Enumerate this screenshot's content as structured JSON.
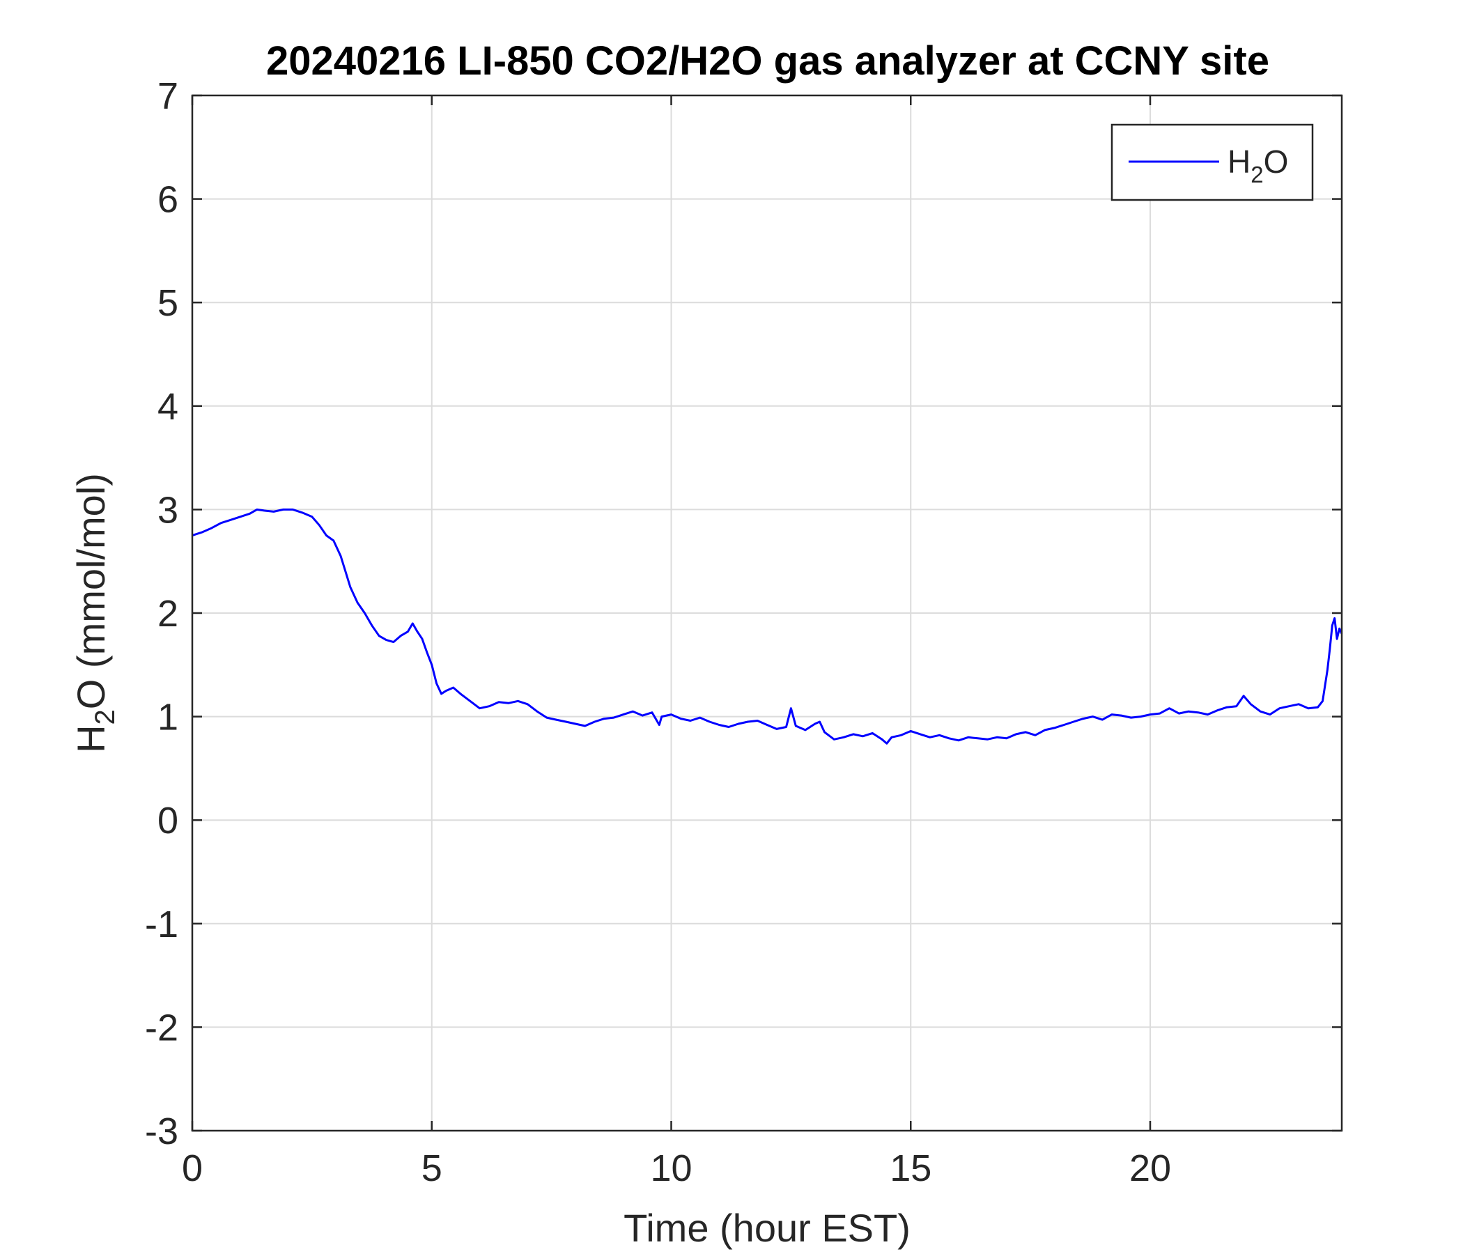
{
  "chart_data": {
    "type": "line",
    "title": "20240216 LI-850 CO2/H2O gas analyzer at CCNY site",
    "xlabel": "Time (hour EST)",
    "ylabel": {
      "base": "H",
      "sub": "2",
      "rest": "O (mmol/mol)"
    },
    "xlim": [
      0,
      24
    ],
    "ylim": [
      -3,
      7
    ],
    "xticks": [
      0,
      5,
      10,
      15,
      20
    ],
    "xtick_labels": [
      "0",
      "5",
      "10",
      "15",
      "20"
    ],
    "yticks": [
      -3,
      -2,
      -1,
      0,
      1,
      2,
      3,
      4,
      5,
      6,
      7
    ],
    "ytick_labels": [
      "-3",
      "-2",
      "-1",
      "0",
      "1",
      "2",
      "3",
      "4",
      "5",
      "6",
      "7"
    ],
    "grid": true,
    "legend": {
      "position": "top-right",
      "entries": [
        {
          "base": "H",
          "sub": "2",
          "rest": "O",
          "color": "#0000ff"
        }
      ]
    },
    "series": [
      {
        "name": "H2O",
        "color": "#0000ff",
        "x": [
          0,
          0.2,
          0.4,
          0.6,
          0.8,
          1.0,
          1.2,
          1.35,
          1.5,
          1.7,
          1.9,
          2.1,
          2.3,
          2.5,
          2.65,
          2.8,
          2.95,
          3.1,
          3.2,
          3.3,
          3.45,
          3.6,
          3.75,
          3.9,
          4.05,
          4.2,
          4.35,
          4.5,
          4.6,
          4.7,
          4.8,
          4.9,
          5.0,
          5.1,
          5.2,
          5.3,
          5.45,
          5.6,
          5.8,
          6.0,
          6.2,
          6.4,
          6.6,
          6.8,
          7.0,
          7.2,
          7.4,
          7.6,
          7.8,
          8.0,
          8.2,
          8.4,
          8.6,
          8.8,
          9.0,
          9.2,
          9.4,
          9.6,
          9.75,
          9.8,
          10.0,
          10.2,
          10.4,
          10.6,
          10.8,
          11.0,
          11.2,
          11.4,
          11.6,
          11.8,
          12.0,
          12.2,
          12.4,
          12.5,
          12.6,
          12.8,
          13.0,
          13.1,
          13.2,
          13.4,
          13.6,
          13.8,
          14.0,
          14.2,
          14.4,
          14.5,
          14.6,
          14.8,
          15.0,
          15.2,
          15.4,
          15.6,
          15.8,
          16.0,
          16.2,
          16.4,
          16.6,
          16.8,
          17.0,
          17.2,
          17.4,
          17.6,
          17.8,
          18.0,
          18.2,
          18.4,
          18.6,
          18.8,
          19.0,
          19.2,
          19.4,
          19.6,
          19.8,
          20.0,
          20.2,
          20.4,
          20.6,
          20.8,
          21.0,
          21.2,
          21.4,
          21.6,
          21.8,
          21.95,
          22.1,
          22.3,
          22.5,
          22.7,
          22.9,
          23.1,
          23.3,
          23.5,
          23.6,
          23.7,
          23.75,
          23.8,
          23.85,
          23.9,
          23.95,
          24.0
        ],
        "y": [
          2.75,
          2.78,
          2.82,
          2.87,
          2.9,
          2.93,
          2.96,
          3.0,
          2.99,
          2.98,
          3.0,
          3.0,
          2.97,
          2.93,
          2.85,
          2.75,
          2.7,
          2.55,
          2.4,
          2.25,
          2.1,
          2.0,
          1.88,
          1.78,
          1.74,
          1.72,
          1.78,
          1.82,
          1.9,
          1.82,
          1.75,
          1.62,
          1.5,
          1.32,
          1.22,
          1.25,
          1.28,
          1.22,
          1.15,
          1.08,
          1.1,
          1.14,
          1.13,
          1.15,
          1.12,
          1.05,
          0.99,
          0.97,
          0.95,
          0.93,
          0.91,
          0.95,
          0.98,
          0.99,
          1.02,
          1.05,
          1.01,
          1.04,
          0.92,
          1.0,
          1.02,
          0.98,
          0.96,
          0.99,
          0.95,
          0.92,
          0.9,
          0.93,
          0.95,
          0.96,
          0.92,
          0.88,
          0.9,
          1.08,
          0.91,
          0.87,
          0.93,
          0.95,
          0.85,
          0.78,
          0.8,
          0.83,
          0.81,
          0.84,
          0.78,
          0.74,
          0.8,
          0.82,
          0.86,
          0.83,
          0.8,
          0.82,
          0.79,
          0.77,
          0.8,
          0.79,
          0.78,
          0.8,
          0.79,
          0.83,
          0.85,
          0.82,
          0.87,
          0.89,
          0.92,
          0.95,
          0.98,
          1.0,
          0.97,
          1.02,
          1.01,
          0.99,
          1.0,
          1.02,
          1.03,
          1.08,
          1.03,
          1.05,
          1.04,
          1.02,
          1.06,
          1.09,
          1.1,
          1.2,
          1.12,
          1.05,
          1.02,
          1.08,
          1.1,
          1.12,
          1.08,
          1.09,
          1.15,
          1.45,
          1.65,
          1.88,
          1.95,
          1.75,
          1.85,
          1.8
        ]
      }
    ]
  }
}
